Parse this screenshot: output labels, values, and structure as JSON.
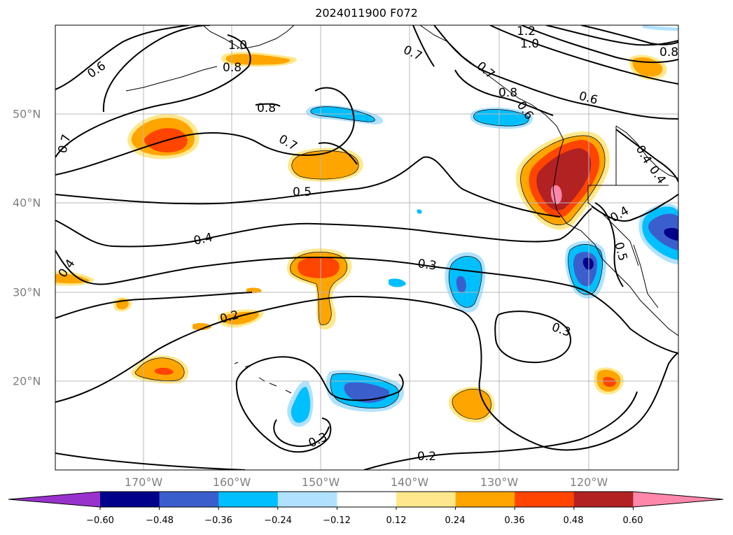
{
  "title": "2024011900 F072",
  "lon_labels": [
    "170°W",
    "160°W",
    "150°W",
    "140°W",
    "130°W",
    "120°W"
  ],
  "lat_labels": [
    "50°N",
    "40°N",
    "30°N",
    "20°N"
  ],
  "colorbar": {
    "ticks": [
      "−0.60",
      "−0.48",
      "−0.36",
      "−0.24",
      "−0.12",
      "0.12",
      "0.24",
      "0.36",
      "0.48",
      "0.60"
    ],
    "colors": [
      "#9932cc",
      "#00008b",
      "#3a5fcd",
      "#00bfff",
      "#b0e2ff",
      "#ffffff",
      "#ffe88c",
      "#ffa500",
      "#ff4500",
      "#b22222",
      "#ff88aa"
    ]
  },
  "contour_labels": [
    "1.2",
    "1.0",
    "0.8",
    "0.7",
    "0.6",
    "0.8",
    "1.0",
    "0.8",
    "0.7",
    "0.8",
    "0.7",
    "0.6",
    "0.5",
    "0.4",
    "0.4",
    "0.4",
    "0.3",
    "0.3",
    "0.3",
    "0.2",
    "0.2",
    "0.5",
    "0.4",
    "0.6",
    "0.7",
    "0.4"
  ]
}
